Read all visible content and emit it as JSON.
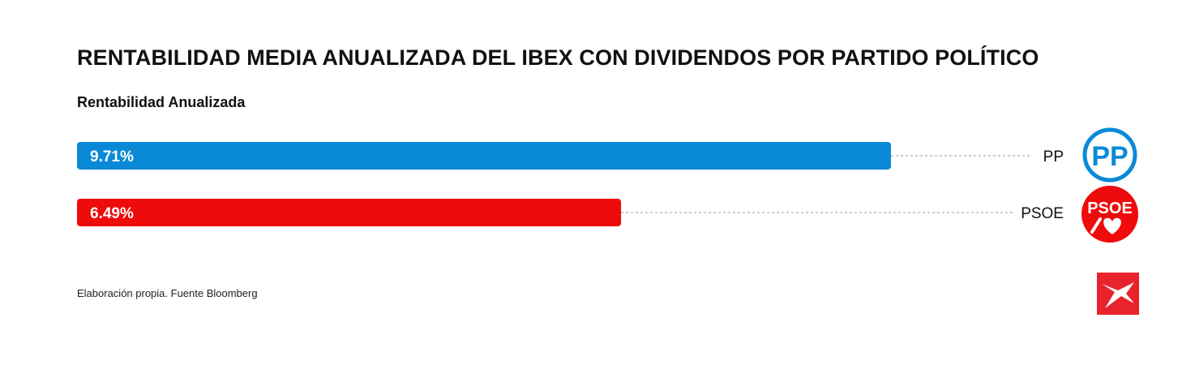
{
  "title": "RENTABILIDAD MEDIA ANUALIZADA DEL IBEX CON DIVIDENDOS POR PARTIDO POLÍTICO",
  "subtitle": "Rentabilidad Anualizada",
  "source": "Elaboración propia. Fuente Bloomberg",
  "colors": {
    "pp": "#0a8ad6",
    "psoe": "#ee0b0b",
    "brand": "#e8232c"
  },
  "logos": {
    "pp": {
      "icon": "pp-party-logo-icon",
      "text": "PP"
    },
    "psoe": {
      "icon": "psoe-party-logo-icon",
      "text": "PSOE"
    },
    "brand": {
      "icon": "publisher-logo-icon"
    }
  },
  "chart_data": {
    "type": "bar",
    "orientation": "horizontal",
    "title": "RENTABILIDAD MEDIA ANUALIZADA DEL IBEX CON DIVIDENDOS POR PARTIDO POLÍTICO",
    "subtitle": "Rentabilidad Anualizada",
    "categories": [
      "PP",
      "PSOE"
    ],
    "values": [
      9.71,
      6.49
    ],
    "value_labels": [
      "9.71%",
      "6.49%"
    ],
    "colors": [
      "#0a8ad6",
      "#ee0b0b"
    ],
    "xlim": [
      0,
      9.71
    ],
    "grid": false
  }
}
